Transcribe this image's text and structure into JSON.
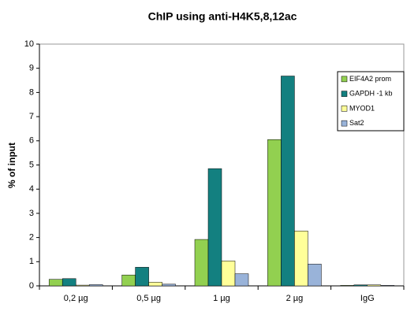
{
  "chart_data": {
    "type": "bar",
    "title": "ChIP using anti-H4K5,8,12ac",
    "y_label": "% of input",
    "categories": [
      "0,2 µg",
      "0,5 µg",
      "1 µg",
      "2 µg",
      "IgG"
    ],
    "series": [
      {
        "name": "EIF4A2 prom",
        "color": "#92d050",
        "values": [
          0.27,
          0.45,
          1.92,
          6.05,
          0.02
        ]
      },
      {
        "name": "GAPDH -1 kb",
        "color": "#138080",
        "values": [
          0.3,
          0.77,
          4.85,
          8.68,
          0.04
        ]
      },
      {
        "name": "MYOD1",
        "color": "#ffff99",
        "values": [
          0.03,
          0.15,
          1.03,
          2.27,
          0.04
        ]
      },
      {
        "name": "Sat2",
        "color": "#99b3d9",
        "values": [
          0.05,
          0.07,
          0.5,
          0.9,
          0.02
        ]
      }
    ],
    "ylim": [
      0,
      10
    ],
    "yticks": [
      0,
      1,
      2,
      3,
      4,
      5,
      6,
      7,
      8,
      9,
      10
    ],
    "legend": "upper right"
  }
}
